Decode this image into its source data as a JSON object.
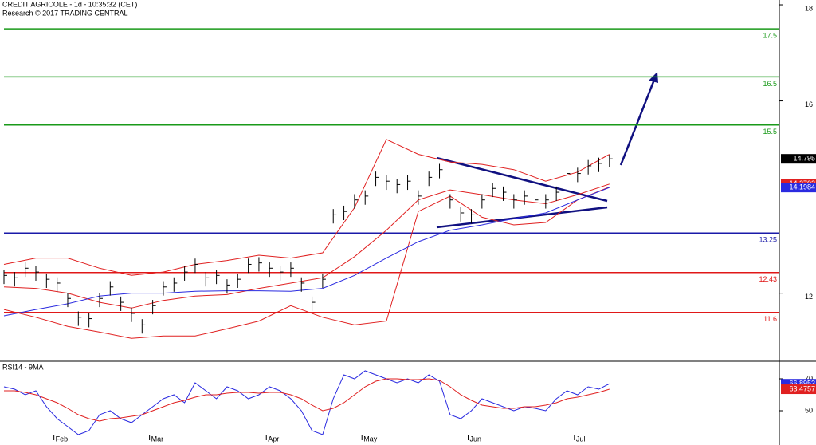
{
  "chart_data": [
    {
      "type": "ohlc",
      "title": "CREDIT AGRICOLE - 1d - 10:35:32 (CET)",
      "subtitle": "Research © 2017 TRADING CENTRAL",
      "categories": [
        null,
        null,
        null,
        null,
        null,
        "Feb",
        null,
        null,
        null,
        null,
        null,
        null,
        null,
        null,
        "Mar",
        null,
        null,
        null,
        null,
        null,
        null,
        null,
        null,
        null,
        null,
        "Apr",
        null,
        null,
        null,
        null,
        null,
        null,
        null,
        null,
        "May",
        null,
        null,
        null,
        null,
        null,
        null,
        null,
        null,
        null,
        "Jun",
        null,
        null,
        null,
        null,
        null,
        null,
        null,
        null,
        null,
        "Jul",
        null,
        null,
        null
      ],
      "close": [
        12.37,
        12.32,
        12.52,
        12.44,
        12.29,
        12.21,
        11.89,
        11.5,
        11.47,
        11.89,
        12.13,
        11.81,
        11.58,
        11.34,
        11.74,
        12.13,
        12.21,
        12.44,
        12.6,
        12.32,
        12.37,
        12.17,
        12.29,
        12.6,
        12.63,
        12.52,
        12.44,
        12.52,
        12.21,
        11.81,
        12.29,
        13.63,
        13.7,
        13.94,
        14.02,
        14.41,
        14.33,
        14.26,
        14.33,
        14.02,
        14.41,
        14.57,
        13.94,
        13.67,
        13.63,
        13.94,
        14.18,
        14.1,
        13.94,
        14.02,
        13.94,
        13.94,
        14.1,
        14.49,
        14.49,
        14.65,
        14.7,
        14.795
      ],
      "high": [
        12.49,
        12.44,
        12.64,
        12.56,
        12.41,
        12.33,
        12.01,
        11.62,
        11.59,
        12.01,
        12.25,
        11.93,
        11.7,
        11.46,
        11.86,
        12.25,
        12.33,
        12.56,
        12.72,
        12.44,
        12.49,
        12.29,
        12.41,
        12.72,
        12.75,
        12.64,
        12.56,
        12.64,
        12.33,
        11.93,
        12.41,
        13.75,
        13.82,
        14.06,
        14.14,
        14.53,
        14.45,
        14.38,
        14.45,
        14.14,
        14.53,
        14.69,
        14.06,
        13.79,
        13.75,
        14.06,
        14.3,
        14.22,
        14.06,
        14.14,
        14.06,
        14.06,
        14.22,
        14.61,
        14.61,
        14.77,
        14.82,
        14.88
      ],
      "low": [
        12.19,
        12.14,
        12.34,
        12.26,
        12.11,
        12.03,
        11.71,
        11.32,
        11.29,
        11.71,
        11.95,
        11.63,
        11.4,
        11.16,
        11.56,
        11.95,
        12.03,
        12.26,
        12.42,
        12.14,
        12.19,
        11.99,
        12.11,
        12.42,
        12.45,
        12.34,
        12.26,
        12.34,
        12.03,
        11.63,
        12.11,
        13.45,
        13.52,
        13.76,
        13.84,
        14.23,
        14.15,
        14.08,
        14.15,
        13.84,
        14.23,
        14.39,
        13.76,
        13.49,
        13.45,
        13.76,
        14.0,
        13.92,
        13.76,
        13.84,
        13.76,
        13.76,
        13.92,
        14.31,
        14.31,
        14.47,
        14.52,
        14.62
      ],
      "color": "#000000",
      "ylim": [
        10.6,
        18.1
      ],
      "yticks": [
        12,
        16,
        18
      ],
      "levels": [
        {
          "value": 17.5,
          "color": "#1a9a1a"
        },
        {
          "value": 16.5,
          "color": "#1a9a1a"
        },
        {
          "value": 15.5,
          "color": "#1a9a1a"
        },
        {
          "value": 13.25,
          "color": "#1a1aa8"
        },
        {
          "value": 12.43,
          "color": "#e01818"
        },
        {
          "value": 11.6,
          "color": "#e01818"
        }
      ],
      "overlays": [
        {
          "color": "#e02020",
          "x": [
            0,
            3,
            6,
            9,
            12,
            15,
            18,
            21,
            24,
            27,
            30,
            33,
            36,
            39,
            42,
            45,
            48,
            51,
            54,
            57
          ],
          "values": [
            12.6,
            12.73,
            12.73,
            12.52,
            12.37,
            12.44,
            12.6,
            12.68,
            12.79,
            12.73,
            12.84,
            13.78,
            15.2,
            14.89,
            14.73,
            14.68,
            14.57,
            14.33,
            14.52,
            14.89
          ]
        },
        {
          "color": "#e02020",
          "x": [
            0,
            3,
            6,
            9,
            12,
            15,
            18,
            21,
            24,
            27,
            30,
            33,
            36,
            39,
            42,
            45,
            48,
            51,
            54,
            57
          ],
          "values": [
            11.66,
            11.5,
            11.31,
            11.19,
            11.06,
            11.11,
            11.11,
            11.26,
            11.42,
            11.74,
            11.5,
            11.34,
            11.42,
            13.7,
            14.02,
            13.58,
            13.42,
            13.47,
            13.94,
            14.21
          ]
        },
        {
          "color": "#e02020",
          "x": [
            0,
            3,
            6,
            9,
            12,
            15,
            18,
            21,
            24,
            27,
            30,
            33,
            36,
            39,
            42,
            45,
            48,
            51,
            54,
            57
          ],
          "values": [
            12.13,
            12.1,
            12.0,
            11.81,
            11.69,
            11.85,
            11.94,
            11.97,
            12.1,
            12.21,
            12.32,
            12.76,
            13.31,
            13.94,
            14.15,
            14.05,
            13.94,
            13.86,
            14.05,
            14.2703
          ]
        },
        {
          "color": "#2a2ae0",
          "x": [
            0,
            3,
            6,
            9,
            12,
            15,
            18,
            21,
            24,
            27,
            30,
            33,
            36,
            39,
            42,
            45,
            48,
            51,
            54,
            57
          ],
          "values": [
            11.53,
            11.66,
            11.78,
            11.94,
            12.0,
            12.0,
            12.04,
            12.05,
            12.05,
            12.04,
            12.1,
            12.37,
            12.73,
            13.07,
            13.31,
            13.42,
            13.55,
            13.67,
            13.94,
            14.1984
          ]
        }
      ]
    },
    {
      "type": "line",
      "title": "RSI14 - 9MA",
      "ylim": [
        28.5,
        80
      ],
      "yticks": [
        50,
        70
      ],
      "series": [
        {
          "color": "#2a2ae0",
          "values": [
            65,
            63.5,
            60,
            62.5,
            52.5,
            45,
            40,
            35,
            37.5,
            47.5,
            50,
            45,
            42.5,
            47.5,
            52.5,
            57.5,
            60,
            55,
            67.5,
            62.5,
            57.5,
            65,
            62.5,
            57.5,
            60,
            65,
            62.5,
            57.5,
            50,
            37.5,
            35,
            57.5,
            72.5,
            70,
            75,
            72.5,
            70,
            67.5,
            70,
            67.5,
            72.5,
            68.5,
            47.5,
            45,
            50,
            57.5,
            55,
            52.5,
            50,
            52.5,
            51.5,
            50,
            57.5,
            62.5,
            60,
            65,
            63.5,
            66.8953
          ]
        },
        {
          "color": "#e02020",
          "values": [
            62.5,
            62.5,
            61.5,
            60,
            57.5,
            55,
            51.5,
            47.5,
            45,
            43.5,
            45,
            45.5,
            46.5,
            47.5,
            50,
            52.5,
            55,
            56.5,
            58.5,
            60,
            60,
            61,
            61.5,
            61.5,
            61,
            61.5,
            61.5,
            60,
            57.5,
            53.5,
            50,
            51.5,
            55,
            60,
            65,
            68.5,
            70,
            70,
            69.5,
            69.5,
            70,
            69,
            65,
            60,
            56.5,
            53.5,
            52.5,
            51.5,
            51.5,
            52.5,
            52.5,
            53.5,
            55,
            57.5,
            58.5,
            60,
            61.5,
            63.4757
          ]
        }
      ]
    }
  ]
}
